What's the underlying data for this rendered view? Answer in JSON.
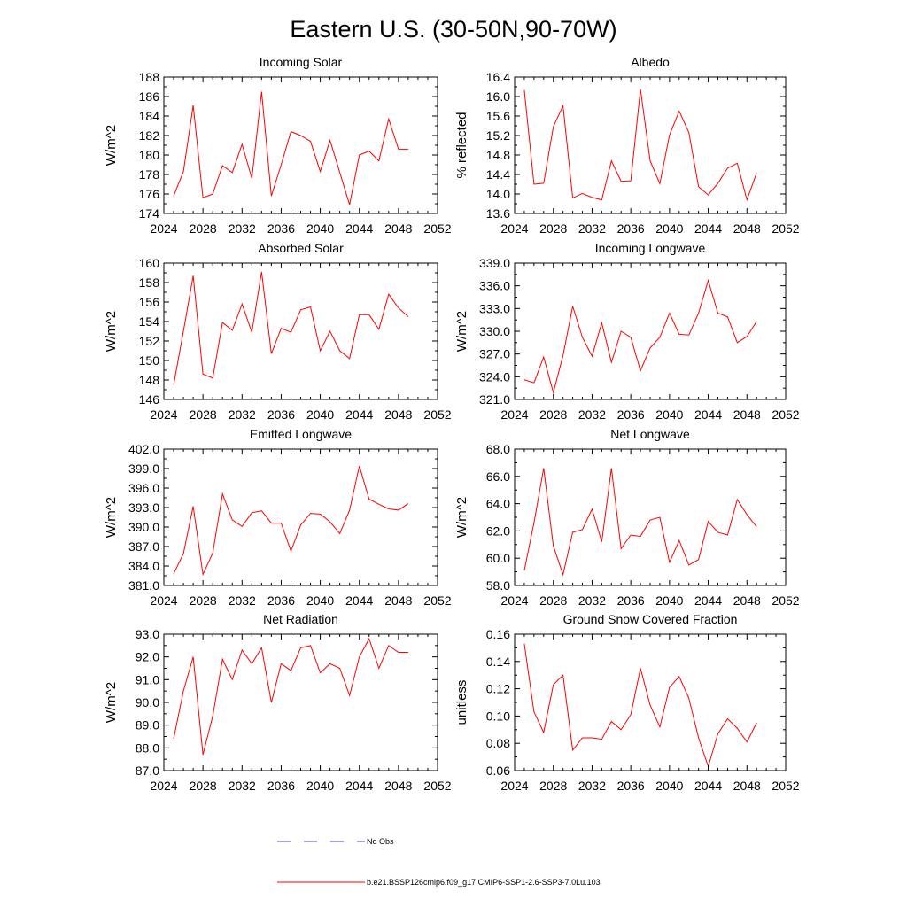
{
  "figure": {
    "title": "Eastern U.S. (30-50N,90-70W)",
    "line_color": "#ff0000",
    "obs_color": "#4a4ad0"
  },
  "legend": {
    "obs_label": "No Obs",
    "model_label": "b.e21.BSSP126cmip6.f09_g17.CMIP6-SSP1-2.6-SSP3-7.0Lu.103"
  },
  "chart_data": [
    {
      "type": "line",
      "title": "Incoming Solar",
      "ylabel": "W/m^2",
      "xlim": [
        2024,
        2052
      ],
      "ylim": [
        174,
        188
      ],
      "xticks": [
        2024,
        2028,
        2032,
        2036,
        2040,
        2044,
        2048,
        2052
      ],
      "xtick_labels": [
        "2024",
        "2028",
        "2032",
        "2036",
        "2040",
        "2044",
        "2048",
        "2052"
      ],
      "yticks": [
        174,
        176,
        178,
        180,
        182,
        184,
        186,
        188
      ],
      "ytick_labels": [
        "174",
        "176",
        "178",
        "180",
        "182",
        "184",
        "186",
        "188"
      ],
      "x": [
        2025,
        2026,
        2027,
        2028,
        2029,
        2030,
        2031,
        2032,
        2033,
        2034,
        2035,
        2036,
        2037,
        2038,
        2039,
        2040,
        2041,
        2042,
        2043,
        2044,
        2045,
        2046,
        2047,
        2048,
        2049
      ],
      "values": [
        175.8,
        178.3,
        185.1,
        175.6,
        176.0,
        178.9,
        178.2,
        181.1,
        177.6,
        186.5,
        175.8,
        179.0,
        182.4,
        182.0,
        181.4,
        178.3,
        181.5,
        178.2,
        174.9,
        180.0,
        180.4,
        179.4,
        183.7,
        180.6,
        180.6
      ]
    },
    {
      "type": "line",
      "title": "Albedo",
      "ylabel": "% reflected",
      "xlim": [
        2024,
        2052
      ],
      "ylim": [
        13.6,
        16.4
      ],
      "xticks": [
        2024,
        2028,
        2032,
        2036,
        2040,
        2044,
        2048,
        2052
      ],
      "xtick_labels": [
        "2024",
        "2028",
        "2032",
        "2036",
        "2040",
        "2044",
        "2048",
        "2052"
      ],
      "yticks": [
        13.6,
        14.0,
        14.4,
        14.8,
        15.2,
        15.6,
        16.0,
        16.4
      ],
      "ytick_labels": [
        "13.6",
        "14.0",
        "14.4",
        "14.8",
        "15.2",
        "15.6",
        "16.0",
        "16.4"
      ],
      "x": [
        2025,
        2026,
        2027,
        2028,
        2029,
        2030,
        2031,
        2032,
        2033,
        2034,
        2035,
        2036,
        2037,
        2038,
        2039,
        2040,
        2041,
        2042,
        2043,
        2044,
        2045,
        2046,
        2047,
        2048,
        2049
      ],
      "values": [
        16.13,
        14.2,
        14.22,
        15.38,
        15.81,
        13.92,
        14.01,
        13.93,
        13.88,
        14.68,
        14.26,
        14.27,
        16.15,
        14.68,
        14.21,
        15.21,
        15.7,
        15.26,
        14.15,
        13.98,
        14.22,
        14.53,
        14.63,
        13.88,
        14.43
      ]
    },
    {
      "type": "line",
      "title": "Absorbed Solar",
      "ylabel": "W/m^2",
      "xlim": [
        2024,
        2052
      ],
      "ylim": [
        146,
        160
      ],
      "xticks": [
        2024,
        2028,
        2032,
        2036,
        2040,
        2044,
        2048,
        2052
      ],
      "xtick_labels": [
        "2024",
        "2028",
        "2032",
        "2036",
        "2040",
        "2044",
        "2048",
        "2052"
      ],
      "yticks": [
        146,
        148,
        150,
        152,
        154,
        156,
        158,
        160
      ],
      "ytick_labels": [
        "146",
        "148",
        "150",
        "152",
        "154",
        "156",
        "158",
        "160"
      ],
      "x": [
        2025,
        2026,
        2027,
        2028,
        2029,
        2030,
        2031,
        2032,
        2033,
        2034,
        2035,
        2036,
        2037,
        2038,
        2039,
        2040,
        2041,
        2042,
        2043,
        2044,
        2045,
        2046,
        2047,
        2048,
        2049
      ],
      "values": [
        147.5,
        153.0,
        158.7,
        148.6,
        148.2,
        153.9,
        153.1,
        155.8,
        152.9,
        159.1,
        150.7,
        153.3,
        152.9,
        155.2,
        155.5,
        151.0,
        153.0,
        151.0,
        150.2,
        154.7,
        154.7,
        153.2,
        156.8,
        155.4,
        154.5
      ]
    },
    {
      "type": "line",
      "title": "Incoming Longwave",
      "ylabel": "W/m^2",
      "xlim": [
        2024,
        2052
      ],
      "ylim": [
        321.0,
        339.0
      ],
      "xticks": [
        2024,
        2028,
        2032,
        2036,
        2040,
        2044,
        2048,
        2052
      ],
      "xtick_labels": [
        "2024",
        "2028",
        "2032",
        "2036",
        "2040",
        "2044",
        "2048",
        "2052"
      ],
      "yticks": [
        321.0,
        324.0,
        327.0,
        330.0,
        333.0,
        336.0,
        339.0
      ],
      "ytick_labels": [
        "321.0",
        "324.0",
        "327.0",
        "330.0",
        "333.0",
        "336.0",
        "339.0"
      ],
      "x": [
        2025,
        2026,
        2027,
        2028,
        2029,
        2030,
        2031,
        2032,
        2033,
        2034,
        2035,
        2036,
        2037,
        2038,
        2039,
        2040,
        2041,
        2042,
        2043,
        2044,
        2045,
        2046,
        2047,
        2048,
        2049
      ],
      "values": [
        323.6,
        323.2,
        326.6,
        321.9,
        326.8,
        333.3,
        329.2,
        326.7,
        331.1,
        325.9,
        330.0,
        329.2,
        324.8,
        327.8,
        329.2,
        332.4,
        329.6,
        329.5,
        332.4,
        336.7,
        332.4,
        331.9,
        328.5,
        329.3,
        331.3
      ]
    },
    {
      "type": "line",
      "title": "Emitted Longwave",
      "ylabel": "W/m^2",
      "xlim": [
        2024,
        2052
      ],
      "ylim": [
        381.0,
        402.0
      ],
      "xticks": [
        2024,
        2028,
        2032,
        2036,
        2040,
        2044,
        2048,
        2052
      ],
      "xtick_labels": [
        "2024",
        "2028",
        "2032",
        "2036",
        "2040",
        "2044",
        "2048",
        "2052"
      ],
      "yticks": [
        381.0,
        384.0,
        387.0,
        390.0,
        393.0,
        396.0,
        399.0,
        402.0
      ],
      "ytick_labels": [
        "381.0",
        "384.0",
        "387.0",
        "390.0",
        "393.0",
        "396.0",
        "399.0",
        "402.0"
      ],
      "x": [
        2025,
        2026,
        2027,
        2028,
        2029,
        2030,
        2031,
        2032,
        2033,
        2034,
        2035,
        2036,
        2037,
        2038,
        2039,
        2040,
        2041,
        2042,
        2043,
        2044,
        2045,
        2046,
        2047,
        2048,
        2049
      ],
      "values": [
        382.8,
        385.9,
        393.2,
        382.7,
        386.0,
        395.1,
        391.1,
        390.1,
        392.2,
        392.5,
        390.6,
        390.6,
        386.3,
        390.3,
        392.1,
        392.0,
        390.8,
        389.0,
        392.6,
        399.4,
        394.3,
        393.5,
        392.8,
        392.6,
        393.6
      ]
    },
    {
      "type": "line",
      "title": "Net Longwave",
      "ylabel": "W/m^2",
      "xlim": [
        2024,
        2052
      ],
      "ylim": [
        58.0,
        68.0
      ],
      "xticks": [
        2024,
        2028,
        2032,
        2036,
        2040,
        2044,
        2048,
        2052
      ],
      "xtick_labels": [
        "2024",
        "2028",
        "2032",
        "2036",
        "2040",
        "2044",
        "2048",
        "2052"
      ],
      "yticks": [
        58.0,
        60.0,
        62.0,
        64.0,
        66.0,
        68.0
      ],
      "ytick_labels": [
        "58.0",
        "60.0",
        "62.0",
        "64.0",
        "66.0",
        "68.0"
      ],
      "x": [
        2025,
        2026,
        2027,
        2028,
        2029,
        2030,
        2031,
        2032,
        2033,
        2034,
        2035,
        2036,
        2037,
        2038,
        2039,
        2040,
        2041,
        2042,
        2043,
        2044,
        2045,
        2046,
        2047,
        2048,
        2049
      ],
      "values": [
        59.1,
        62.6,
        66.6,
        60.9,
        58.8,
        61.9,
        62.1,
        63.6,
        61.2,
        66.6,
        60.7,
        61.7,
        61.6,
        62.8,
        63.0,
        59.7,
        61.3,
        59.5,
        59.9,
        62.7,
        61.9,
        61.7,
        64.3,
        63.2,
        62.3
      ]
    },
    {
      "type": "line",
      "title": "Net Radiation",
      "ylabel": "W/m^2",
      "xlim": [
        2024,
        2052
      ],
      "ylim": [
        87.0,
        93.0
      ],
      "xticks": [
        2024,
        2028,
        2032,
        2036,
        2040,
        2044,
        2048,
        2052
      ],
      "xtick_labels": [
        "2024",
        "2028",
        "2032",
        "2036",
        "2040",
        "2044",
        "2048",
        "2052"
      ],
      "yticks": [
        87.0,
        88.0,
        89.0,
        90.0,
        91.0,
        92.0,
        93.0
      ],
      "ytick_labels": [
        "87.0",
        "88.0",
        "89.0",
        "90.0",
        "91.0",
        "92.0",
        "93.0"
      ],
      "x": [
        2025,
        2026,
        2027,
        2028,
        2029,
        2030,
        2031,
        2032,
        2033,
        2034,
        2035,
        2036,
        2037,
        2038,
        2039,
        2040,
        2041,
        2042,
        2043,
        2044,
        2045,
        2046,
        2047,
        2048,
        2049
      ],
      "values": [
        88.4,
        90.5,
        92.0,
        87.7,
        89.4,
        91.9,
        91.0,
        92.3,
        91.7,
        92.4,
        90.0,
        91.7,
        91.4,
        92.4,
        92.5,
        91.3,
        91.7,
        91.5,
        90.3,
        92.0,
        92.8,
        91.5,
        92.5,
        92.2,
        92.2
      ]
    },
    {
      "type": "line",
      "title": "Ground Snow Covered Fraction",
      "ylabel": "unitless",
      "xlim": [
        2024,
        2052
      ],
      "ylim": [
        0.06,
        0.16
      ],
      "xticks": [
        2024,
        2028,
        2032,
        2036,
        2040,
        2044,
        2048,
        2052
      ],
      "xtick_labels": [
        "2024",
        "2028",
        "2032",
        "2036",
        "2040",
        "2044",
        "2048",
        "2052"
      ],
      "yticks": [
        0.06,
        0.08,
        0.1,
        0.12,
        0.14,
        0.16
      ],
      "ytick_labels": [
        "0.06",
        "0.08",
        "0.10",
        "0.12",
        "0.14",
        "0.16"
      ],
      "x": [
        2025,
        2026,
        2027,
        2028,
        2029,
        2030,
        2031,
        2032,
        2033,
        2034,
        2035,
        2036,
        2037,
        2038,
        2039,
        2040,
        2041,
        2042,
        2043,
        2044,
        2045,
        2046,
        2047,
        2048,
        2049
      ],
      "values": [
        0.153,
        0.103,
        0.088,
        0.123,
        0.13,
        0.075,
        0.084,
        0.084,
        0.083,
        0.096,
        0.09,
        0.101,
        0.135,
        0.108,
        0.092,
        0.121,
        0.129,
        0.113,
        0.084,
        0.063,
        0.087,
        0.098,
        0.091,
        0.081,
        0.095
      ]
    }
  ]
}
